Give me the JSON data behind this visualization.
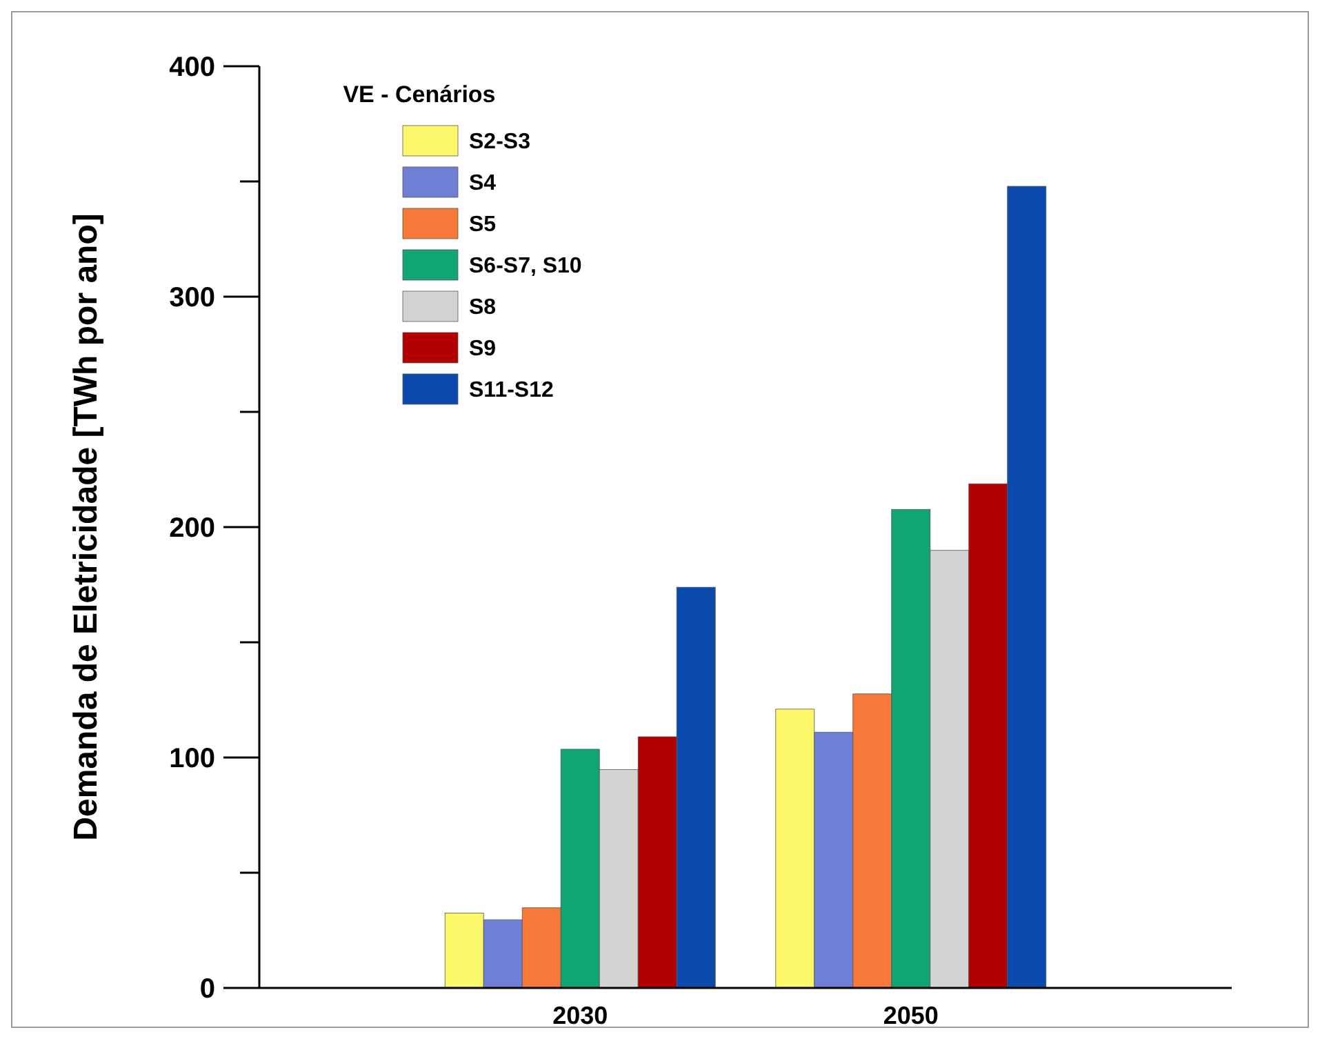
{
  "chart_data": {
    "type": "bar",
    "ylabel": "Demanda de Eletricidade [TWh por ano]",
    "legend_title": "VE - Cenários",
    "categories": [
      "2030",
      "2050"
    ],
    "series": [
      {
        "name": "S2-S3",
        "color": "#fdf76a",
        "values": [
          32.5,
          121
        ]
      },
      {
        "name": "S4",
        "color": "#6f7fd6",
        "values": [
          29.6,
          111
        ]
      },
      {
        "name": "S5",
        "color": "#f7793a",
        "values": [
          34.8,
          127.6
        ]
      },
      {
        "name": "S6-S7, S10",
        "color": "#12a574",
        "values": [
          103.6,
          207.7
        ]
      },
      {
        "name": "S8",
        "color": "#d3d3d3",
        "values": [
          94.8,
          189.9
        ]
      },
      {
        "name": "S9",
        "color": "#b20000",
        "values": [
          109,
          218.8
        ]
      },
      {
        "name": "S11-S12",
        "color": "#0a4aad",
        "values": [
          173.9,
          347.9
        ]
      }
    ],
    "ylim": [
      0,
      400
    ],
    "yticks": [
      0,
      {
        "value": 50,
        "label": null
      },
      100,
      {
        "value": 150,
        "label": null
      },
      200,
      {
        "value": 250,
        "label": null
      },
      300,
      {
        "value": 350,
        "label": null
      },
      400
    ],
    "legend": "top left",
    "grid": false
  }
}
